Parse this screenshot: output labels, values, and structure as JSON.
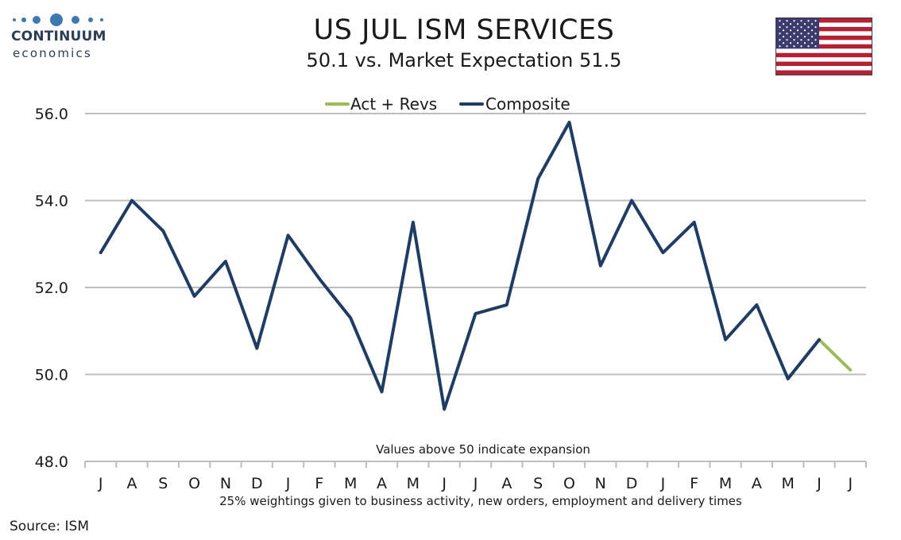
{
  "header": {
    "title": "US JUL ISM SERVICES",
    "subtitle": "50.1 vs. Market Expectation 51.5"
  },
  "logo": {
    "wordmark": "CONTINUUM",
    "submark": "economics"
  },
  "flag": {
    "icon": "us-flag-icon"
  },
  "footer": {
    "source": "Source: ISM"
  },
  "chart_data": {
    "type": "line",
    "categories": [
      "J",
      "A",
      "S",
      "O",
      "N",
      "D",
      "J",
      "F",
      "M",
      "A",
      "M",
      "J",
      "J",
      "A",
      "S",
      "O",
      "N",
      "D",
      "J",
      "F",
      "M",
      "A",
      "M",
      "J",
      "J"
    ],
    "series": [
      {
        "name": "Act + Revs",
        "color": "#9bbb59",
        "values": [
          null,
          null,
          null,
          null,
          null,
          null,
          null,
          null,
          null,
          null,
          null,
          null,
          null,
          null,
          null,
          null,
          null,
          null,
          null,
          null,
          null,
          null,
          null,
          50.8,
          50.1
        ]
      },
      {
        "name": "Composite",
        "color": "#1f3d63",
        "values": [
          52.8,
          54.0,
          53.3,
          51.8,
          52.6,
          50.6,
          53.2,
          52.2,
          51.3,
          49.6,
          53.5,
          49.2,
          51.4,
          51.6,
          54.5,
          55.8,
          52.5,
          54.0,
          52.8,
          53.5,
          50.8,
          51.6,
          49.9,
          50.8,
          null
        ]
      }
    ],
    "ylim": [
      48.0,
      56.0
    ],
    "yticks": [
      "48.0",
      "50.0",
      "52.0",
      "54.0",
      "56.0"
    ],
    "grid": true,
    "legend_position": "top-center",
    "annotations": {
      "inside": "Values above 50 indicate expansion",
      "below_axis": "25% weightings given to business activity, new orders, employment and delivery times"
    }
  }
}
